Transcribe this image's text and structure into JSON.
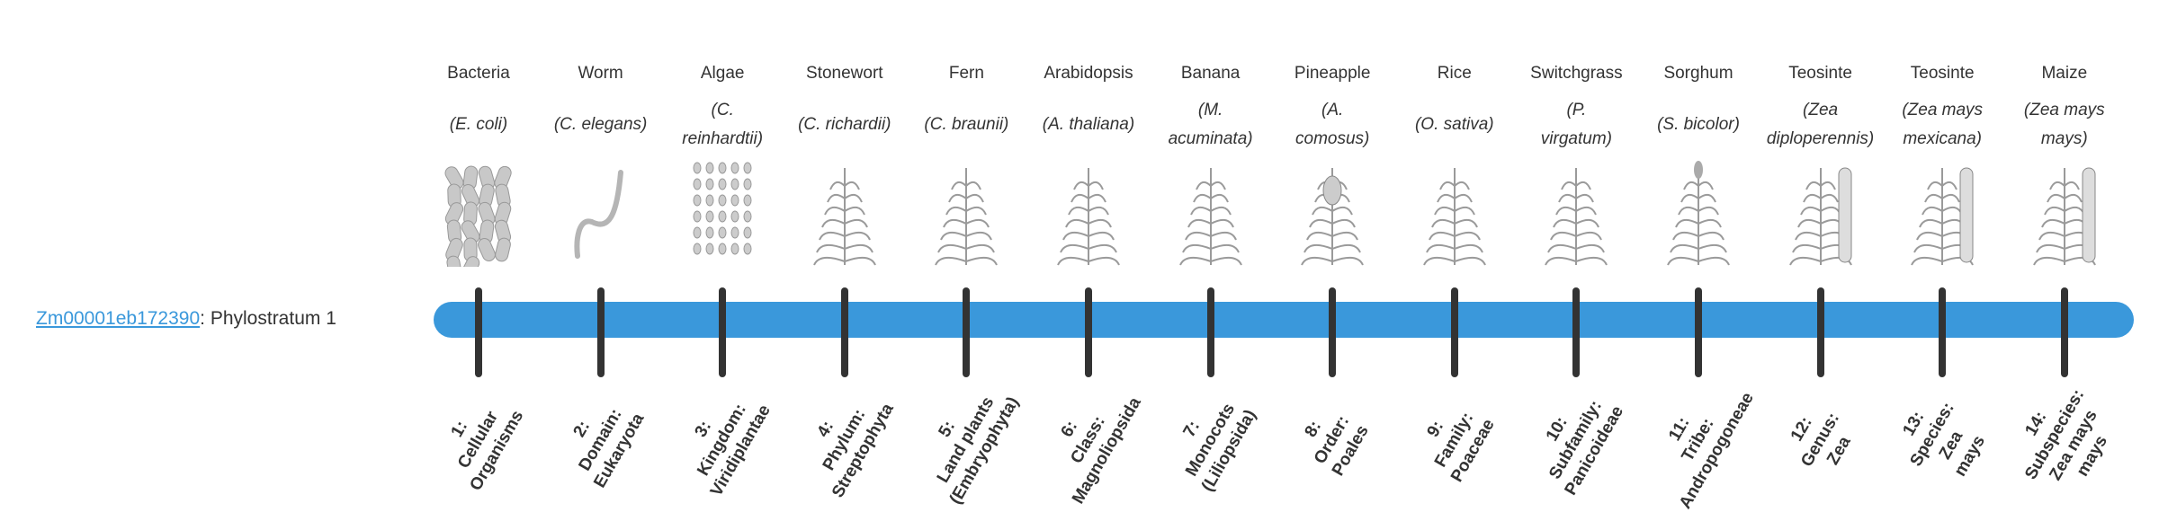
{
  "gene": {
    "id": "Zm00001eb172390",
    "suffix": ": Phylostratum 1"
  },
  "colors": {
    "bar": "#3a98db",
    "tick": "#333333",
    "link": "#3a98db",
    "illustration": "#9a9a9a"
  },
  "strata": [
    {
      "common": "Bacteria",
      "species": [
        "(E. coli)"
      ],
      "icon": "bacteria-icon",
      "rank": [
        "1:",
        "Cellular",
        "Organisms"
      ]
    },
    {
      "common": "Worm",
      "species": [
        "(C. elegans)"
      ],
      "icon": "worm-icon",
      "rank": [
        "2:",
        "Domain:",
        "Eukaryota"
      ]
    },
    {
      "common": "Algae",
      "species": [
        "(C.",
        "reinhardtii)"
      ],
      "icon": "algae-icon",
      "rank": [
        "3:",
        "Kingdom:",
        "Viridiplantae"
      ]
    },
    {
      "common": "Stonewort",
      "species": [
        "(C. richardii)"
      ],
      "icon": "stonewort-icon",
      "rank": [
        "4:",
        "Phylum:",
        "Streptophyta"
      ]
    },
    {
      "common": "Fern",
      "species": [
        "(C. braunii)"
      ],
      "icon": "fern-icon",
      "rank": [
        "5:",
        "Land plants",
        "(Embryophyta)"
      ]
    },
    {
      "common": "Arabidopsis",
      "species": [
        "(A. thaliana)"
      ],
      "icon": "arabidopsis-icon",
      "rank": [
        "6:",
        "Class:",
        "Magnoliopsida"
      ]
    },
    {
      "common": "Banana",
      "species": [
        "(M.",
        "acuminata)"
      ],
      "icon": "banana-plant-icon",
      "rank": [
        "7:",
        "Monocots",
        "(Liliopsida)"
      ]
    },
    {
      "common": "Pineapple",
      "species": [
        "(A.",
        "comosus)"
      ],
      "icon": "pineapple-icon",
      "rank": [
        "8:",
        "Order:",
        "Poales"
      ]
    },
    {
      "common": "Rice",
      "species": [
        "(O. sativa)"
      ],
      "icon": "rice-icon",
      "rank": [
        "9:",
        "Family:",
        "Poaceae"
      ]
    },
    {
      "common": "Switchgrass",
      "species": [
        "(P.",
        "virgatum)"
      ],
      "icon": "switchgrass-icon",
      "rank": [
        "10:",
        "Subfamily:",
        "Panicoideae"
      ]
    },
    {
      "common": "Sorghum",
      "species": [
        "(S. bicolor)"
      ],
      "icon": "sorghum-icon",
      "rank": [
        "11:",
        "Tribe:",
        "Andropogoneae"
      ]
    },
    {
      "common": "Teosinte",
      "species": [
        "(Zea",
        "diploperennis)"
      ],
      "icon": "teosinte-icon",
      "rank": [
        "12:",
        "Genus:",
        "Zea"
      ]
    },
    {
      "common": "Teosinte",
      "species": [
        "(Zea mays",
        "mexicana)"
      ],
      "icon": "teosinte-icon",
      "rank": [
        "13:",
        "Species:",
        "Zea",
        "mays"
      ]
    },
    {
      "common": "Maize",
      "species": [
        "(Zea mays",
        "mays)"
      ],
      "icon": "maize-icon",
      "rank": [
        "14:",
        "Subspecies:",
        "Zea mays",
        "mays"
      ]
    }
  ]
}
